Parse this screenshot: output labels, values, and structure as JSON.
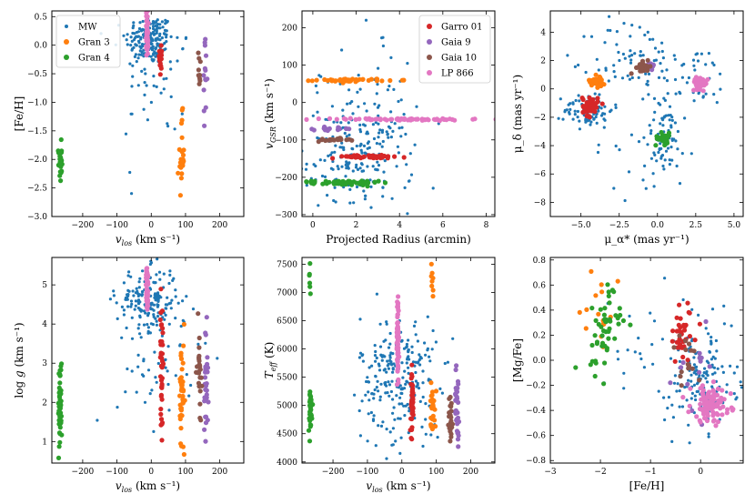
{
  "colors": {
    "MW": "#1f77b4",
    "Gran 3": "#ff7f0e",
    "Gran 4": "#2ca02c",
    "Garro 01": "#d62728",
    "Gaia 9": "#9467bd",
    "Gaia 10": "#8c564b",
    "LP 866": "#e377c2"
  },
  "chart_data": [
    {
      "type": "scatter",
      "xlabel": "v_los (km s⁻¹)",
      "ylabel": "[Fe/H]",
      "xlim": [
        -290,
        270
      ],
      "ylim": [
        -3.0,
        0.6
      ],
      "xticks": [
        -200,
        -100,
        0,
        100,
        200
      ],
      "xtick_labels": [
        "−200",
        "−100",
        "0",
        "100",
        "200"
      ],
      "yticks": [
        -3.0,
        -2.5,
        -2.0,
        -1.5,
        -1.0,
        -0.5,
        0.0,
        0.5
      ],
      "ytick_labels": [
        "−3.0",
        "−2.5",
        "−2.0",
        "−1.5",
        "−1.0",
        "−0.5",
        "0.0",
        "0.5"
      ],
      "legend": {
        "position": "top-left",
        "entries": [
          "MW",
          "Gran 3",
          "Gran 4"
        ]
      },
      "series": [
        {
          "name": "MW",
          "clouds": [
            {
              "n": 170,
              "cx": -5,
              "cy": 0.1,
              "sx": 35,
              "sy": 0.22
            },
            {
              "n": 40,
              "cx": 20,
              "cy": -0.5,
              "sx": 50,
              "sy": 0.5
            },
            {
              "n": 8,
              "cx": 0,
              "cy": -1.3,
              "sx": 40,
              "sy": 0.4
            }
          ]
        },
        {
          "name": "Gran 3",
          "clouds": [
            {
              "n": 24,
              "cx": 88,
              "cy": -1.95,
              "sx": 4,
              "sy": 0.35
            }
          ]
        },
        {
          "name": "Gran 4",
          "clouds": [
            {
              "n": 30,
              "cx": -266,
              "cy": -2.05,
              "sx": 2.5,
              "sy": 0.17
            }
          ]
        },
        {
          "name": "Garro 01",
          "clouds": [
            {
              "n": 22,
              "cx": 28,
              "cy": -0.2,
              "sx": 2,
              "sy": 0.2
            }
          ]
        },
        {
          "name": "Gaia 9",
          "clouds": [
            {
              "n": 14,
              "cx": 157,
              "cy": -0.6,
              "sx": 3,
              "sy": 0.35
            }
          ]
        },
        {
          "name": "Gaia 10",
          "clouds": [
            {
              "n": 10,
              "cx": 140,
              "cy": -0.4,
              "sx": 3,
              "sy": 0.18
            }
          ]
        },
        {
          "name": "LP 866",
          "clouds": [
            {
              "n": 40,
              "cx": -12,
              "cy": 0.22,
              "sx": 1.5,
              "sy": 0.2
            }
          ]
        }
      ]
    },
    {
      "type": "scatter",
      "xlabel": "Projected Radius (arcmin)",
      "ylabel": "v_GSR (km s⁻¹)",
      "xlim": [
        -0.5,
        8.4
      ],
      "ylim": [
        -305,
        245
      ],
      "xticks": [
        0,
        2,
        4,
        6,
        8
      ],
      "xtick_labels": [
        "0",
        "2",
        "4",
        "6",
        "8"
      ],
      "yticks": [
        -300,
        -200,
        -100,
        0,
        100,
        200
      ],
      "ytick_labels": [
        "−300",
        "−200",
        "−100",
        "0",
        "100",
        "200"
      ],
      "legend": {
        "position": "top-right",
        "entries": [
          "Garro 01",
          "Gaia 9",
          "Gaia 10",
          "LP 866"
        ]
      },
      "series": [
        {
          "name": "MW",
          "clouds": [
            {
              "n": 200,
              "cx": 2.2,
              "cy": -150,
              "sx": 1.2,
              "sy": 70
            },
            {
              "n": 40,
              "cx": 2.2,
              "cy": 40,
              "sx": 1.3,
              "sy": 90
            }
          ]
        },
        {
          "name": "Gran 3",
          "clouds": [
            {
              "n": 45,
              "cx": 1.8,
              "cy": 60,
              "sx": 0.8,
              "sy": 2
            }
          ]
        },
        {
          "name": "Gran 4",
          "clouds": [
            {
              "n": 60,
              "cx": 1.5,
              "cy": -215,
              "sx": 0.75,
              "sy": 3
            }
          ]
        },
        {
          "name": "Garro 01",
          "clouds": [
            {
              "n": 50,
              "cx": 2.5,
              "cy": -145,
              "sx": 0.9,
              "sy": 2
            }
          ]
        },
        {
          "name": "Gaia 9",
          "clouds": [
            {
              "n": 20,
              "cx": 1.0,
              "cy": -70,
              "sx": 0.45,
              "sy": 2
            }
          ]
        },
        {
          "name": "Gaia 10",
          "clouds": [
            {
              "n": 20,
              "cx": 0.9,
              "cy": -100,
              "sx": 0.4,
              "sy": 2
            }
          ]
        },
        {
          "name": "LP 866",
          "clouds": [
            {
              "n": 70,
              "cx": 4.0,
              "cy": -45,
              "sx": 2.0,
              "sy": 1.5
            }
          ]
        }
      ]
    },
    {
      "type": "scatter",
      "xlabel": "μ_α* (mas yr⁻¹)",
      "ylabel": "μ_δ (mas yr⁻¹)",
      "xlim": [
        -7.0,
        5.6
      ],
      "ylim": [
        -9.0,
        5.5
      ],
      "xticks": [
        -5.0,
        -2.5,
        0.0,
        2.5,
        5.0
      ],
      "xtick_labels": [
        "−5.0",
        "−2.5",
        "0.0",
        "2.5",
        "5.0"
      ],
      "yticks": [
        -8,
        -6,
        -4,
        -2,
        0,
        2,
        4
      ],
      "ytick_labels": [
        "−8",
        "−6",
        "−4",
        "−2",
        "0",
        "2",
        "4"
      ],
      "legend": null,
      "series": [
        {
          "name": "MW",
          "clouds": [
            {
              "n": 90,
              "cx": -4.5,
              "cy": -1.5,
              "sx": 0.8,
              "sy": 0.6
            },
            {
              "n": 70,
              "cx": -1.5,
              "cy": 2.0,
              "sx": 1.4,
              "sy": 1.5
            },
            {
              "n": 60,
              "cx": 0.5,
              "cy": -3.5,
              "sx": 0.7,
              "sy": 1.2
            },
            {
              "n": 40,
              "cx": 2.5,
              "cy": 0.5,
              "sx": 1.2,
              "sy": 1.2
            },
            {
              "n": 20,
              "cx": -1.0,
              "cy": -5.0,
              "sx": 2.0,
              "sy": 1.5
            }
          ]
        },
        {
          "name": "Gran 3",
          "clouds": [
            {
              "n": 30,
              "cx": -3.9,
              "cy": 0.6,
              "sx": 0.25,
              "sy": 0.25
            }
          ]
        },
        {
          "name": "Gran 4",
          "clouds": [
            {
              "n": 35,
              "cx": 0.4,
              "cy": -3.5,
              "sx": 0.25,
              "sy": 0.2
            }
          ]
        },
        {
          "name": "Garro 01",
          "clouds": [
            {
              "n": 45,
              "cx": -4.4,
              "cy": -1.2,
              "sx": 0.25,
              "sy": 0.35
            }
          ]
        },
        {
          "name": "Gaia 9",
          "clouds": [
            {
              "n": 12,
              "cx": -0.5,
              "cy": 1.7,
              "sx": 0.2,
              "sy": 0.15
            }
          ]
        },
        {
          "name": "Gaia 10",
          "clouds": [
            {
              "n": 25,
              "cx": -0.9,
              "cy": 1.5,
              "sx": 0.25,
              "sy": 0.2
            }
          ]
        },
        {
          "name": "LP 866",
          "clouds": [
            {
              "n": 40,
              "cx": 2.8,
              "cy": 0.4,
              "sx": 0.25,
              "sy": 0.2
            }
          ]
        }
      ]
    },
    {
      "type": "scatter",
      "xlabel": "v_los (km s⁻¹)",
      "ylabel": "log g (km s⁻¹)",
      "xlim": [
        -290,
        270
      ],
      "ylim": [
        0.45,
        5.7
      ],
      "xticks": [
        -200,
        -100,
        0,
        100,
        200
      ],
      "xtick_labels": [
        "−200",
        "−100",
        "0",
        "100",
        "200"
      ],
      "yticks": [
        1,
        2,
        3,
        4,
        5
      ],
      "ytick_labels": [
        "1",
        "2",
        "3",
        "4",
        "5"
      ],
      "legend": null,
      "series": [
        {
          "name": "MW",
          "clouds": [
            {
              "n": 170,
              "cx": -10,
              "cy": 4.6,
              "sx": 45,
              "sy": 0.4
            },
            {
              "n": 50,
              "cx": 20,
              "cy": 3.2,
              "sx": 60,
              "sy": 0.9
            }
          ]
        },
        {
          "name": "Gran 3",
          "clouds": [
            {
              "n": 40,
              "cx": 90,
              "cy": 2.0,
              "sx": 4,
              "sy": 0.8
            }
          ]
        },
        {
          "name": "Gran 4",
          "clouds": [
            {
              "n": 50,
              "cx": -266,
              "cy": 1.9,
              "sx": 2.5,
              "sy": 0.6
            }
          ]
        },
        {
          "name": "Garro 01",
          "clouds": [
            {
              "n": 40,
              "cx": 30,
              "cy": 3.0,
              "sx": 2,
              "sy": 0.8
            }
          ]
        },
        {
          "name": "Gaia 9",
          "clouds": [
            {
              "n": 30,
              "cx": 160,
              "cy": 2.5,
              "sx": 3,
              "sy": 0.7
            }
          ]
        },
        {
          "name": "Gaia 10",
          "clouds": [
            {
              "n": 25,
              "cx": 140,
              "cy": 2.9,
              "sx": 3,
              "sy": 0.55
            }
          ]
        },
        {
          "name": "LP 866",
          "clouds": [
            {
              "n": 60,
              "cx": -12,
              "cy": 4.9,
              "sx": 1.5,
              "sy": 0.3
            }
          ]
        }
      ]
    },
    {
      "type": "scatter",
      "xlabel": "v_los (km s⁻¹)",
      "ylabel": "T_eff (K)",
      "xlim": [
        -290,
        270
      ],
      "ylim": [
        3980,
        7620
      ],
      "xticks": [
        -200,
        -100,
        0,
        100,
        200
      ],
      "xtick_labels": [
        "−200",
        "−100",
        "0",
        "100",
        "200"
      ],
      "yticks": [
        4000,
        4500,
        5000,
        5500,
        6000,
        6500,
        7000,
        7500
      ],
      "ytick_labels": [
        "4000",
        "4500",
        "5000",
        "5500",
        "6000",
        "6500",
        "7000",
        "7500"
      ],
      "legend": null,
      "series": [
        {
          "name": "MW",
          "clouds": [
            {
              "n": 200,
              "cx": -10,
              "cy": 5600,
              "sx": 55,
              "sy": 500
            },
            {
              "n": 30,
              "cx": 10,
              "cy": 4800,
              "sx": 70,
              "sy": 300
            }
          ]
        },
        {
          "name": "Gran 3",
          "clouds": [
            {
              "n": 25,
              "cx": 90,
              "cy": 5000,
              "sx": 4,
              "sy": 220
            },
            {
              "n": 8,
              "cx": 88,
              "cy": 7250,
              "sx": 3,
              "sy": 200
            }
          ]
        },
        {
          "name": "Gran 4",
          "clouds": [
            {
              "n": 40,
              "cx": -266,
              "cy": 4900,
              "sx": 2.5,
              "sy": 200
            },
            {
              "n": 6,
              "cx": -268,
              "cy": 7200,
              "sx": 2,
              "sy": 200
            }
          ]
        },
        {
          "name": "Garro 01",
          "clouds": [
            {
              "n": 40,
              "cx": 30,
              "cy": 5050,
              "sx": 2,
              "sy": 280
            }
          ]
        },
        {
          "name": "Gaia 9",
          "clouds": [
            {
              "n": 30,
              "cx": 160,
              "cy": 5050,
              "sx": 3,
              "sy": 300
            }
          ]
        },
        {
          "name": "Gaia 10",
          "clouds": [
            {
              "n": 25,
              "cx": 142,
              "cy": 4750,
              "sx": 3,
              "sy": 250
            }
          ]
        },
        {
          "name": "LP 866",
          "clouds": [
            {
              "n": 70,
              "cx": -12,
              "cy": 6200,
              "sx": 1.5,
              "sy": 400
            }
          ]
        }
      ]
    },
    {
      "type": "scatter",
      "xlabel": "[Fe/H]",
      "ylabel": "[Mg/Fe]",
      "xlim": [
        -3.0,
        0.85
      ],
      "ylim": [
        -0.82,
        0.82
      ],
      "xticks": [
        -3,
        -2,
        -1,
        0
      ],
      "xtick_labels": [
        "−3",
        "−2",
        "−1",
        "0"
      ],
      "yticks": [
        -0.8,
        -0.6,
        -0.4,
        -0.2,
        0.0,
        0.2,
        0.4,
        0.6,
        0.8
      ],
      "ytick_labels": [
        "−0.8",
        "−0.6",
        "−0.4",
        "−0.2",
        "0.0",
        "0.2",
        "0.4",
        "0.6",
        "0.8"
      ],
      "legend": null,
      "series": [
        {
          "name": "MW",
          "clouds": [
            {
              "n": 150,
              "cx": 0.0,
              "cy": -0.15,
              "sx": 0.35,
              "sy": 0.2
            },
            {
              "n": 30,
              "cx": -0.8,
              "cy": 0.1,
              "sx": 0.6,
              "sy": 0.3
            }
          ]
        },
        {
          "name": "Gran 3",
          "clouds": [
            {
              "n": 15,
              "cx": -1.95,
              "cy": 0.35,
              "sx": 0.15,
              "sy": 0.15
            }
          ]
        },
        {
          "name": "Gran 4",
          "clouds": [
            {
              "n": 50,
              "cx": -1.95,
              "cy": 0.25,
              "sx": 0.18,
              "sy": 0.18
            }
          ]
        },
        {
          "name": "Garro 01",
          "clouds": [
            {
              "n": 35,
              "cx": -0.35,
              "cy": 0.2,
              "sx": 0.15,
              "sy": 0.12
            }
          ]
        },
        {
          "name": "Gaia 9",
          "clouds": [
            {
              "n": 15,
              "cx": -0.1,
              "cy": -0.1,
              "sx": 0.2,
              "sy": 0.2
            }
          ]
        },
        {
          "name": "Gaia 10",
          "clouds": [
            {
              "n": 15,
              "cx": -0.3,
              "cy": 0.0,
              "sx": 0.15,
              "sy": 0.15
            }
          ]
        },
        {
          "name": "LP 866",
          "clouds": [
            {
              "n": 100,
              "cx": 0.2,
              "cy": -0.35,
              "sx": 0.2,
              "sy": 0.07
            }
          ]
        }
      ]
    }
  ]
}
